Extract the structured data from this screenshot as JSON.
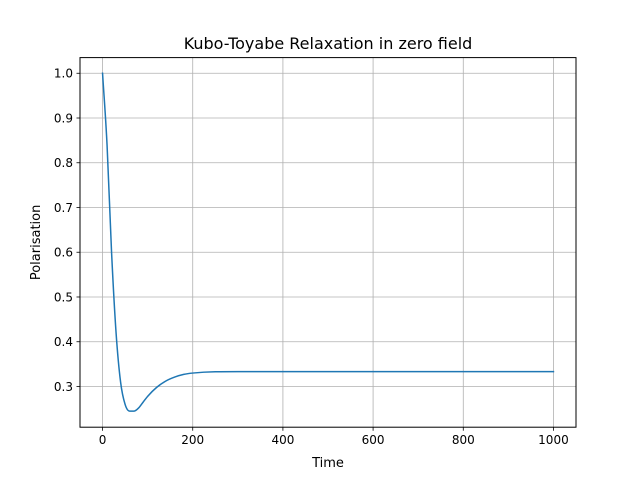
{
  "chart_data": {
    "type": "line",
    "title": "Kubo-Toyabe Relaxation in zero field",
    "xlabel": "Time",
    "ylabel": "Polarisation",
    "xlim": [
      -50,
      1050
    ],
    "ylim": [
      0.209,
      1.035
    ],
    "xticks": [
      0,
      200,
      400,
      600,
      800,
      1000
    ],
    "xtick_labels": [
      "0",
      "200",
      "400",
      "600",
      "800",
      "1000"
    ],
    "yticks": [
      0.3,
      0.4,
      0.5,
      0.6,
      0.7,
      0.8,
      0.9,
      1.0
    ],
    "ytick_labels": [
      "0.3",
      "0.4",
      "0.5",
      "0.6",
      "0.7",
      "0.8",
      "0.9",
      "1.0"
    ],
    "grid": true,
    "legend": "none",
    "series": [
      {
        "color": "#1f77b4",
        "x": [
          0,
          10,
          20,
          30,
          40,
          50,
          60,
          70,
          80,
          90,
          100,
          120,
          140,
          160,
          180,
          200,
          250,
          300,
          400,
          600,
          800,
          1000
        ],
        "y": [
          1.0,
          0.84,
          0.6,
          0.42,
          0.31,
          0.26,
          0.245,
          0.245,
          0.252,
          0.265,
          0.278,
          0.298,
          0.312,
          0.321,
          0.327,
          0.33,
          0.333,
          0.3333,
          0.3333,
          0.3333,
          0.3333,
          0.3333
        ]
      }
    ]
  }
}
